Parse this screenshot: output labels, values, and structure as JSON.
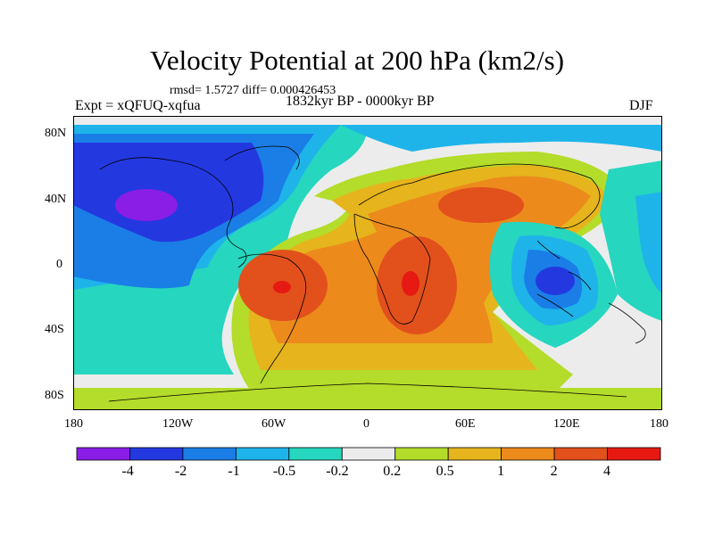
{
  "title": "Velocity Potential at 200 hPa (km2/s)",
  "stats": "rmsd= 1.5727 diff= 0.000426453",
  "experiment": "Expt = xQFUQ-xqfua",
  "period": "1832kyr BP - 0000kyr BP",
  "season": "DJF",
  "axes": {
    "y_ticks": [
      "80N",
      "40N",
      "0",
      "40S",
      "80S"
    ],
    "x_ticks": [
      "180",
      "120W",
      "60W",
      "0",
      "60E",
      "120E",
      "180"
    ]
  },
  "colorbar": {
    "colors": [
      "#8a1ee6",
      "#2438e0",
      "#1a7ee6",
      "#1eb4ea",
      "#26d6be",
      "#ececec",
      "#b4dc2a",
      "#e6b41c",
      "#ec8a1c",
      "#e2501c",
      "#e61a12"
    ],
    "labels": [
      "-4",
      "-2",
      "-1",
      "-0.5",
      "-0.2",
      "0.2",
      "0.5",
      "1",
      "2",
      "4"
    ]
  }
}
